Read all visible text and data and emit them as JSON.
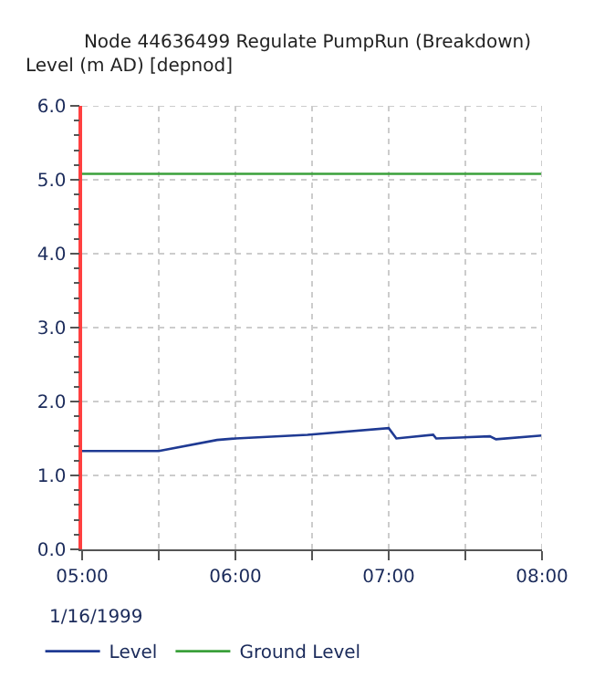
{
  "chart_data": {
    "type": "line",
    "title": "Node 44636499 Regulate PumpRun (Breakdown)",
    "ylabel": "Level (m AD) [depnod]",
    "x": [
      5.0,
      5.5,
      5.88,
      6.0,
      6.47,
      7.0,
      7.05,
      7.29,
      7.31,
      7.66,
      7.7,
      8.0
    ],
    "series": [
      {
        "name": "Level",
        "color": "#1f3a93",
        "values": [
          1.33,
          1.33,
          1.48,
          1.5,
          1.55,
          1.64,
          1.5,
          1.55,
          1.5,
          1.53,
          1.49,
          1.54
        ]
      },
      {
        "name": "Ground Level",
        "color": "#3aa03a",
        "x": [
          5.0,
          8.0
        ],
        "values": [
          5.08,
          5.08
        ]
      }
    ],
    "xlim": [
      5,
      8
    ],
    "xticks": [
      {
        "value": 5,
        "label": "05:00"
      },
      {
        "value": 5.5,
        "label": null
      },
      {
        "value": 6,
        "label": "06:00"
      },
      {
        "value": 6.5,
        "label": null
      },
      {
        "value": 7,
        "label": "07:00"
      },
      {
        "value": 7.5,
        "label": null
      },
      {
        "value": 8,
        "label": "08:00"
      }
    ],
    "ylim": [
      0,
      6
    ],
    "yticks": [
      {
        "value": 0,
        "label": "0.0"
      },
      {
        "value": 1,
        "label": "1.0"
      },
      {
        "value": 2,
        "label": "2.0"
      },
      {
        "value": 3,
        "label": "3.0"
      },
      {
        "value": 4,
        "label": "4.0"
      },
      {
        "value": 5,
        "label": "5.0"
      },
      {
        "value": 6,
        "label": "6.0"
      }
    ],
    "annotations": [
      "1/16/1999"
    ],
    "grid": true,
    "legend": "bottom left",
    "marker": "none",
    "line_style": "solid"
  }
}
